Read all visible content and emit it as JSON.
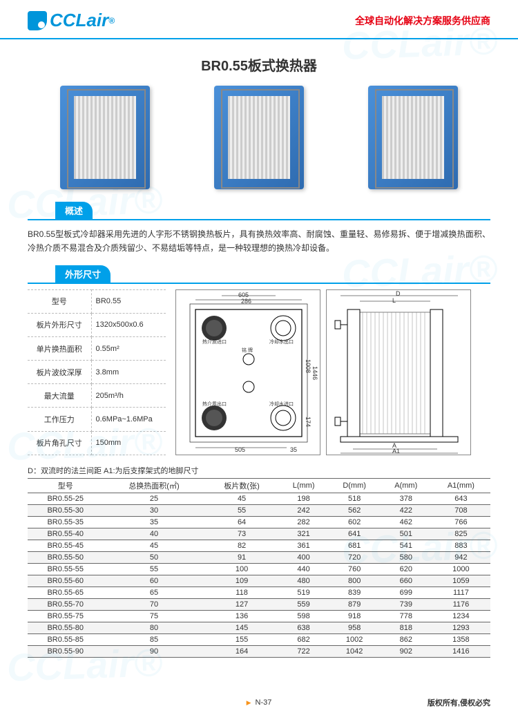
{
  "header": {
    "logo_text": "CCLair",
    "logo_reg": "®",
    "tagline": "全球自动化解决方案服务供应商"
  },
  "title": "BR0.55板式换热器",
  "sections": {
    "overview": "概述",
    "dimensions": "外形尺寸"
  },
  "description": "BR0.55型板式冷却器采用先进的人字形不锈钢换热板片，具有换热效率高、耐腐蚀、重量轻、易修易拆、便于增减换热面积、冷热介质不易混合及介质残留少、不易结垢等特点，是一种较理想的换热冷却设备。",
  "spec_table": {
    "rows": [
      {
        "label": "型号",
        "value": "BR0.55"
      },
      {
        "label": "板片外形尺寸",
        "value": "1320x500x0.6"
      },
      {
        "label": "单片换热面积",
        "value": "0.55m²"
      },
      {
        "label": "板片波纹深厚",
        "value": "3.8mm"
      },
      {
        "label": "最大流量",
        "value": "205m³/h"
      },
      {
        "label": "工作压力",
        "value": "0.6MPa~1.6MPa"
      },
      {
        "label": "板片角孔尺寸",
        "value": "150mm"
      }
    ]
  },
  "diagram_dims": {
    "d1_top_outer": "605",
    "d1_top_inner": "286",
    "d1_side_outer": "1446",
    "d1_side_inner": "1008",
    "d1_bot": "505",
    "d1_bot2": "35",
    "d1_bot3": "174",
    "d1_labels": [
      "热介质进口",
      "冷却水出口",
      "铭 牌",
      "热介质出口",
      "冷却水进口"
    ],
    "d2_top_D": "D",
    "d2_top_L": "L",
    "d2_bot_A": "A",
    "d2_bot_A1": "A1"
  },
  "table_note": "D：双流时的法兰间距 A1:为后支撑架式的地脚尺寸",
  "data_table": {
    "columns": [
      "型号",
      "总换热面积(㎡)",
      "板片数(张)",
      "L(mm)",
      "D(mm)",
      "A(mm)",
      "A1(mm)"
    ],
    "rows": [
      [
        "BR0.55-25",
        "25",
        "45",
        "198",
        "518",
        "378",
        "643"
      ],
      [
        "BR0.55-30",
        "30",
        "55",
        "242",
        "562",
        "422",
        "708"
      ],
      [
        "BR0.55-35",
        "35",
        "64",
        "282",
        "602",
        "462",
        "766"
      ],
      [
        "BR0.55-40",
        "40",
        "73",
        "321",
        "641",
        "501",
        "825"
      ],
      [
        "BR0.55-45",
        "45",
        "82",
        "361",
        "681",
        "541",
        "883"
      ],
      [
        "BR0.55-50",
        "50",
        "91",
        "400",
        "720",
        "580",
        "942"
      ],
      [
        "BR0.55-55",
        "55",
        "100",
        "440",
        "760",
        "620",
        "1000"
      ],
      [
        "BR0.55-60",
        "60",
        "109",
        "480",
        "800",
        "660",
        "1059"
      ],
      [
        "BR0.55-65",
        "65",
        "118",
        "519",
        "839",
        "699",
        "1117"
      ],
      [
        "BR0.55-70",
        "70",
        "127",
        "559",
        "879",
        "739",
        "1176"
      ],
      [
        "BR0.55-75",
        "75",
        "136",
        "598",
        "918",
        "778",
        "1234"
      ],
      [
        "BR0.55-80",
        "80",
        "145",
        "638",
        "958",
        "818",
        "1293"
      ],
      [
        "BR0.55-85",
        "85",
        "155",
        "682",
        "1002",
        "862",
        "1358"
      ],
      [
        "BR0.55-90",
        "90",
        "164",
        "722",
        "1042",
        "902",
        "1416"
      ]
    ]
  },
  "footer": {
    "page": "N-37",
    "copyright": "版权所有,侵权必究"
  },
  "watermark": "CCLair®"
}
